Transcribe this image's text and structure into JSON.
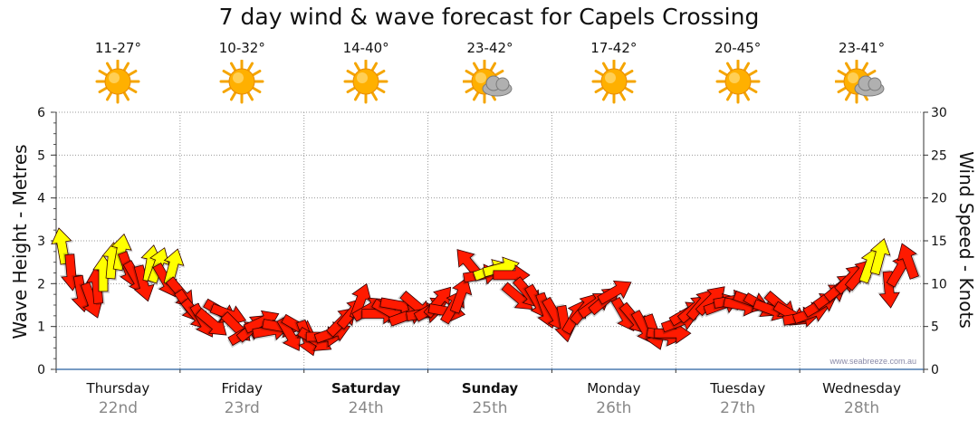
{
  "title": "7 day wind & wave forecast for Capels Crossing",
  "watermark": "www.seabreeze.com.au",
  "colors": {
    "arrow_red": "#ff1a00",
    "arrow_yellow": "#ffff00",
    "arrow_stroke": "#330000",
    "sun": "#ffb000",
    "cloud": "#9a9a9a",
    "grid": "#999999"
  },
  "days": [
    {
      "name": "Thursday",
      "date": "22nd",
      "temp": "11-27°",
      "icon": "sun-icon",
      "bold": false
    },
    {
      "name": "Friday",
      "date": "23rd",
      "temp": "10-32°",
      "icon": "sun-icon",
      "bold": false
    },
    {
      "name": "Saturday",
      "date": "24th",
      "temp": "14-40°",
      "icon": "sun-icon",
      "bold": true
    },
    {
      "name": "Sunday",
      "date": "25th",
      "temp": "23-42°",
      "icon": "sun-cloud-icon",
      "bold": true
    },
    {
      "name": "Monday",
      "date": "26th",
      "temp": "17-42°",
      "icon": "sun-icon",
      "bold": false
    },
    {
      "name": "Tuesday",
      "date": "27th",
      "temp": "20-45°",
      "icon": "sun-icon",
      "bold": false
    },
    {
      "name": "Wednesday",
      "date": "28th",
      "temp": "23-41°",
      "icon": "sun-cloud-icon",
      "bold": false
    }
  ],
  "chart_data": {
    "type": "scatter",
    "title": "7 day wind & wave forecast for Capels Crossing",
    "y_left_label": "Wave Height - Metres",
    "y_right_label": "Wind Speed - Knots",
    "y_left_range": [
      0,
      6
    ],
    "y_left_ticks": [
      "0",
      "1",
      "2",
      "3",
      "4",
      "5",
      "6"
    ],
    "y_right_range": [
      0,
      30
    ],
    "y_right_ticks": [
      "0",
      "5",
      "10",
      "15",
      "20",
      "25",
      "30"
    ],
    "x_unit": "days from start of Thursday 22nd",
    "x_range": [
      0,
      7
    ],
    "grid": true,
    "series": [
      {
        "name": "",
        "description": "wind arrows: x = time in days, y = wind speed in knots, d = direction of arrow in degrees (0 = up), c = colour class",
        "points": [
          {
            "x": 0.05,
            "y": 14.2,
            "d": -10,
            "c": "y"
          },
          {
            "x": 0.12,
            "y": 11.5,
            "d": 175,
            "c": "r"
          },
          {
            "x": 0.2,
            "y": 9.0,
            "d": 170,
            "c": "r"
          },
          {
            "x": 0.28,
            "y": 8.2,
            "d": 160,
            "c": "r"
          },
          {
            "x": 0.33,
            "y": 9.6,
            "d": -5,
            "c": "r"
          },
          {
            "x": 0.38,
            "y": 11.0,
            "d": 0,
            "c": "y"
          },
          {
            "x": 0.45,
            "y": 12.5,
            "d": 5,
            "c": "y"
          },
          {
            "x": 0.52,
            "y": 13.5,
            "d": 10,
            "c": "y"
          },
          {
            "x": 0.58,
            "y": 11.8,
            "d": 160,
            "c": "r"
          },
          {
            "x": 0.64,
            "y": 10.8,
            "d": 150,
            "c": "r"
          },
          {
            "x": 0.7,
            "y": 10.2,
            "d": 165,
            "c": "r"
          },
          {
            "x": 0.76,
            "y": 12.2,
            "d": 10,
            "c": "y"
          },
          {
            "x": 0.82,
            "y": 12.0,
            "d": 20,
            "c": "y"
          },
          {
            "x": 0.88,
            "y": 10.5,
            "d": 150,
            "c": "r"
          },
          {
            "x": 0.94,
            "y": 11.8,
            "d": 15,
            "c": "y"
          },
          {
            "x": 1.0,
            "y": 9.0,
            "d": 140,
            "c": "r"
          },
          {
            "x": 1.06,
            "y": 7.5,
            "d": 145,
            "c": "r"
          },
          {
            "x": 1.12,
            "y": 6.5,
            "d": 140,
            "c": "r"
          },
          {
            "x": 1.18,
            "y": 5.8,
            "d": 150,
            "c": "r"
          },
          {
            "x": 1.25,
            "y": 5.5,
            "d": 130,
            "c": "r"
          },
          {
            "x": 1.32,
            "y": 6.8,
            "d": 120,
            "c": "r"
          },
          {
            "x": 1.38,
            "y": 6.5,
            "d": 110,
            "c": "r"
          },
          {
            "x": 1.45,
            "y": 5.0,
            "d": 135,
            "c": "r"
          },
          {
            "x": 1.52,
            "y": 4.2,
            "d": 60,
            "c": "r"
          },
          {
            "x": 1.58,
            "y": 4.8,
            "d": 50,
            "c": "r"
          },
          {
            "x": 1.65,
            "y": 5.5,
            "d": 65,
            "c": "r"
          },
          {
            "x": 1.72,
            "y": 4.5,
            "d": 80,
            "c": "r"
          },
          {
            "x": 1.8,
            "y": 5.0,
            "d": 100,
            "c": "r"
          },
          {
            "x": 1.88,
            "y": 4.2,
            "d": 150,
            "c": "r"
          },
          {
            "x": 1.95,
            "y": 5.0,
            "d": 120,
            "c": "r"
          },
          {
            "x": 2.02,
            "y": 3.8,
            "d": 160,
            "c": "r"
          },
          {
            "x": 2.08,
            "y": 3.5,
            "d": 120,
            "c": "r"
          },
          {
            "x": 2.15,
            "y": 3.8,
            "d": 90,
            "c": "r"
          },
          {
            "x": 2.22,
            "y": 4.2,
            "d": 70,
            "c": "r"
          },
          {
            "x": 2.3,
            "y": 5.5,
            "d": 45,
            "c": "r"
          },
          {
            "x": 2.38,
            "y": 6.5,
            "d": 40,
            "c": "r"
          },
          {
            "x": 2.45,
            "y": 7.8,
            "d": 20,
            "c": "r"
          },
          {
            "x": 2.52,
            "y": 7.0,
            "d": 60,
            "c": "r"
          },
          {
            "x": 2.6,
            "y": 6.5,
            "d": 90,
            "c": "r"
          },
          {
            "x": 2.68,
            "y": 6.8,
            "d": 120,
            "c": "r"
          },
          {
            "x": 2.75,
            "y": 7.5,
            "d": 100,
            "c": "r"
          },
          {
            "x": 2.82,
            "y": 6.2,
            "d": 70,
            "c": "r"
          },
          {
            "x": 2.9,
            "y": 7.5,
            "d": 130,
            "c": "r"
          },
          {
            "x": 2.96,
            "y": 6.5,
            "d": 80,
            "c": "r"
          },
          {
            "x": 3.02,
            "y": 7.0,
            "d": 60,
            "c": "r"
          },
          {
            "x": 3.08,
            "y": 7.8,
            "d": 40,
            "c": "r"
          },
          {
            "x": 3.14,
            "y": 6.8,
            "d": 100,
            "c": "r"
          },
          {
            "x": 3.2,
            "y": 7.2,
            "d": 30,
            "c": "r"
          },
          {
            "x": 3.26,
            "y": 8.5,
            "d": 20,
            "c": "r"
          },
          {
            "x": 3.34,
            "y": 12.2,
            "d": -40,
            "c": "r"
          },
          {
            "x": 3.42,
            "y": 11.0,
            "d": 80,
            "c": "r"
          },
          {
            "x": 3.5,
            "y": 11.5,
            "d": 70,
            "c": "y"
          },
          {
            "x": 3.58,
            "y": 11.8,
            "d": 75,
            "c": "y"
          },
          {
            "x": 3.66,
            "y": 11.0,
            "d": 90,
            "c": "r"
          },
          {
            "x": 3.72,
            "y": 8.5,
            "d": 130,
            "c": "r"
          },
          {
            "x": 3.8,
            "y": 9.0,
            "d": 140,
            "c": "r"
          },
          {
            "x": 3.88,
            "y": 8.0,
            "d": 150,
            "c": "r"
          },
          {
            "x": 3.95,
            "y": 7.0,
            "d": 160,
            "c": "r"
          },
          {
            "x": 4.02,
            "y": 6.5,
            "d": 150,
            "c": "r"
          },
          {
            "x": 4.1,
            "y": 5.5,
            "d": 170,
            "c": "r"
          },
          {
            "x": 4.18,
            "y": 6.0,
            "d": 30,
            "c": "r"
          },
          {
            "x": 4.26,
            "y": 7.0,
            "d": 40,
            "c": "r"
          },
          {
            "x": 4.34,
            "y": 7.5,
            "d": 55,
            "c": "r"
          },
          {
            "x": 4.42,
            "y": 8.0,
            "d": 50,
            "c": "r"
          },
          {
            "x": 4.5,
            "y": 9.0,
            "d": 60,
            "c": "r"
          },
          {
            "x": 4.58,
            "y": 6.5,
            "d": 150,
            "c": "r"
          },
          {
            "x": 4.66,
            "y": 6.0,
            "d": 140,
            "c": "r"
          },
          {
            "x": 4.74,
            "y": 5.0,
            "d": 150,
            "c": "r"
          },
          {
            "x": 4.82,
            "y": 4.5,
            "d": 160,
            "c": "r"
          },
          {
            "x": 4.9,
            "y": 4.0,
            "d": 100,
            "c": "r"
          },
          {
            "x": 4.96,
            "y": 4.2,
            "d": 90,
            "c": "r"
          },
          {
            "x": 5.02,
            "y": 5.5,
            "d": 70,
            "c": "r"
          },
          {
            "x": 5.08,
            "y": 6.5,
            "d": 60,
            "c": "r"
          },
          {
            "x": 5.14,
            "y": 7.0,
            "d": 50,
            "c": "r"
          },
          {
            "x": 5.2,
            "y": 7.5,
            "d": 40,
            "c": "r"
          },
          {
            "x": 5.28,
            "y": 8.0,
            "d": 45,
            "c": "r"
          },
          {
            "x": 5.36,
            "y": 7.5,
            "d": 70,
            "c": "r"
          },
          {
            "x": 5.44,
            "y": 8.0,
            "d": 80,
            "c": "r"
          },
          {
            "x": 5.52,
            "y": 7.5,
            "d": 100,
            "c": "r"
          },
          {
            "x": 5.6,
            "y": 8.0,
            "d": 110,
            "c": "r"
          },
          {
            "x": 5.68,
            "y": 7.5,
            "d": 120,
            "c": "r"
          },
          {
            "x": 5.76,
            "y": 7.0,
            "d": 110,
            "c": "r"
          },
          {
            "x": 5.84,
            "y": 7.5,
            "d": 130,
            "c": "r"
          },
          {
            "x": 5.92,
            "y": 6.5,
            "d": 120,
            "c": "r"
          },
          {
            "x": 6.0,
            "y": 6.0,
            "d": 80,
            "c": "r"
          },
          {
            "x": 6.08,
            "y": 6.5,
            "d": 70,
            "c": "r"
          },
          {
            "x": 6.16,
            "y": 7.5,
            "d": 60,
            "c": "r"
          },
          {
            "x": 6.24,
            "y": 8.5,
            "d": 55,
            "c": "r"
          },
          {
            "x": 6.32,
            "y": 9.5,
            "d": 50,
            "c": "r"
          },
          {
            "x": 6.4,
            "y": 10.5,
            "d": 45,
            "c": "r"
          },
          {
            "x": 6.48,
            "y": 11.0,
            "d": 40,
            "c": "r"
          },
          {
            "x": 6.56,
            "y": 12.0,
            "d": 20,
            "c": "y"
          },
          {
            "x": 6.64,
            "y": 13.0,
            "d": 15,
            "c": "y"
          },
          {
            "x": 6.72,
            "y": 9.5,
            "d": 175,
            "c": "r"
          },
          {
            "x": 6.8,
            "y": 11.5,
            "d": 30,
            "c": "r"
          },
          {
            "x": 6.88,
            "y": 12.5,
            "d": -20,
            "c": "r"
          }
        ]
      }
    ]
  }
}
